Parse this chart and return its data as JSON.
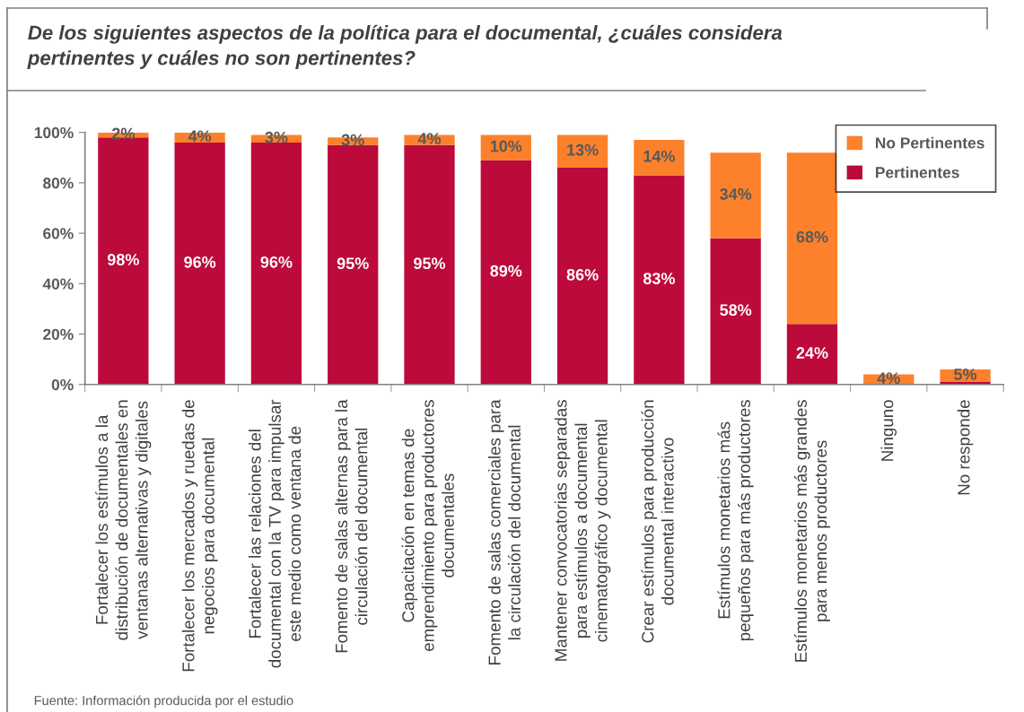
{
  "chart_data": {
    "type": "bar",
    "title": "De los siguientes aspectos de la política para el documental, ¿cuáles considera\npertinentes y cuáles no son pertinentes?",
    "annotations": [
      "Fuente: Información producida por el estudio"
    ],
    "categories": [
      "Fortalecer los estímulos a la\ndistribución de documentales en\nventanas alternativas y digitales",
      "Fortalecer los mercados y ruedas de\nnegocios para documental",
      "Fortalecer las relaciones del\ndocumental con la TV para impulsar\neste medio como ventana de",
      "Fomento de salas alternas para la\ncirculación del documental",
      "Capacitación en temas de\nemprendimiento para productores\ndocumentales",
      "Fomento de salas comerciales para\nla circulación del documental",
      "Mantener convocatorias separadas\npara estímulos a documental\ncinematográfico y documental",
      "Crear estímulos para producción\ndocumental interactivo",
      "Estímulos monetarios más\npequeños para más productores",
      "Estímulos monetarios más grandes\npara menos productores",
      "Ninguno",
      "No responde"
    ],
    "stacked": true,
    "series": [
      {
        "name": "Pertinentes",
        "color": "#bc0a3b",
        "values": [
          98,
          96,
          96,
          95,
          95,
          89,
          86,
          83,
          58,
          24,
          null,
          1
        ],
        "value_labels": [
          "98%",
          "96%",
          "96%",
          "95%",
          "95%",
          "89%",
          "86%",
          "83%",
          "58%",
          "24%",
          null,
          null
        ]
      },
      {
        "name": "No Pertinentes",
        "color": "#fd812b",
        "values": [
          2,
          4,
          3,
          3,
          4,
          10,
          13,
          14,
          34,
          68,
          4,
          5
        ],
        "value_labels": [
          "2%",
          "4%",
          "3%",
          "3%",
          "4%",
          "10%",
          "13%",
          "14%",
          "34%",
          "68%",
          "4%",
          "5%"
        ]
      }
    ],
    "ylim": [
      0,
      100
    ],
    "yticks": [
      {
        "value": 0,
        "label": "0%"
      },
      {
        "value": 20,
        "label": "20%"
      },
      {
        "value": 40,
        "label": "40%"
      },
      {
        "value": 60,
        "label": "60%"
      },
      {
        "value": 80,
        "label": "80%"
      },
      {
        "value": 100,
        "label": "100%"
      }
    ],
    "legend": "top right"
  }
}
